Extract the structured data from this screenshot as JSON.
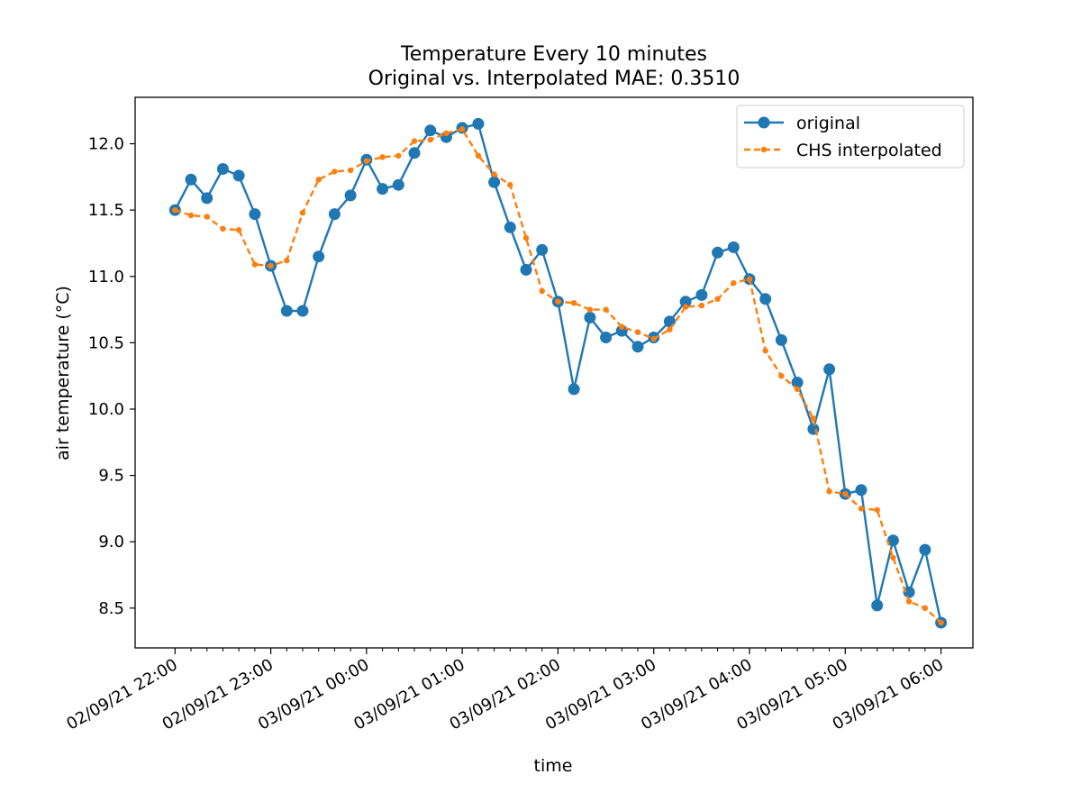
{
  "chart_data": {
    "type": "line",
    "title": "Temperature Every 10 minutes",
    "subtitle": "Original vs. Interpolated MAE: 0.3510",
    "xlabel": "time",
    "ylabel": "air temperature (°C)",
    "ylim": [
      8.2,
      12.35
    ],
    "xlim_minutes": [
      -25,
      500
    ],
    "interval_minutes": 10,
    "yticks": [
      8.5,
      9.0,
      9.5,
      10.0,
      10.5,
      11.0,
      11.5,
      12.0
    ],
    "ytick_labels": [
      "8.5",
      "9.0",
      "9.5",
      "10.0",
      "10.5",
      "11.0",
      "11.5",
      "12.0"
    ],
    "xtick_minutes": [
      0,
      60,
      120,
      180,
      240,
      300,
      360,
      420,
      480
    ],
    "xtick_labels": [
      "02/09/21 22:00",
      "02/09/21 23:00",
      "03/09/21 00:00",
      "03/09/21 01:00",
      "03/09/21 02:00",
      "03/09/21 03:00",
      "03/09/21 04:00",
      "03/09/21 05:00",
      "03/09/21 06:00"
    ],
    "legend_position": "upper right",
    "series": [
      {
        "name": "original",
        "color": "#1f77b4",
        "style": "solid-circle",
        "values": [
          11.5,
          11.73,
          11.59,
          11.81,
          11.76,
          11.47,
          11.08,
          10.74,
          10.74,
          11.15,
          11.47,
          11.61,
          11.88,
          11.66,
          11.69,
          11.93,
          12.1,
          12.05,
          12.12,
          12.15,
          11.71,
          11.37,
          11.05,
          11.2,
          10.81,
          10.15,
          10.69,
          10.54,
          10.59,
          10.47,
          10.54,
          10.66,
          10.81,
          10.86,
          11.18,
          11.22,
          10.98,
          10.83,
          10.52,
          10.2,
          9.85,
          10.3,
          9.36,
          9.39,
          8.52,
          9.01,
          8.62,
          8.94,
          8.39
        ]
      },
      {
        "name": "CHS interpolated",
        "color": "#ff7f0e",
        "style": "dashed-dot",
        "values": [
          11.5,
          11.46,
          11.45,
          11.36,
          11.35,
          11.09,
          11.08,
          11.12,
          11.48,
          11.73,
          11.79,
          11.8,
          11.87,
          11.9,
          11.91,
          12.02,
          12.03,
          12.08,
          12.11,
          11.91,
          11.77,
          11.69,
          11.29,
          10.89,
          10.81,
          10.8,
          10.75,
          10.75,
          10.62,
          10.58,
          10.53,
          10.6,
          10.77,
          10.78,
          10.83,
          10.95,
          10.98,
          10.44,
          10.25,
          10.15,
          9.93,
          9.38,
          9.36,
          9.25,
          9.24,
          8.88,
          8.55,
          8.5,
          8.39
        ]
      }
    ]
  }
}
